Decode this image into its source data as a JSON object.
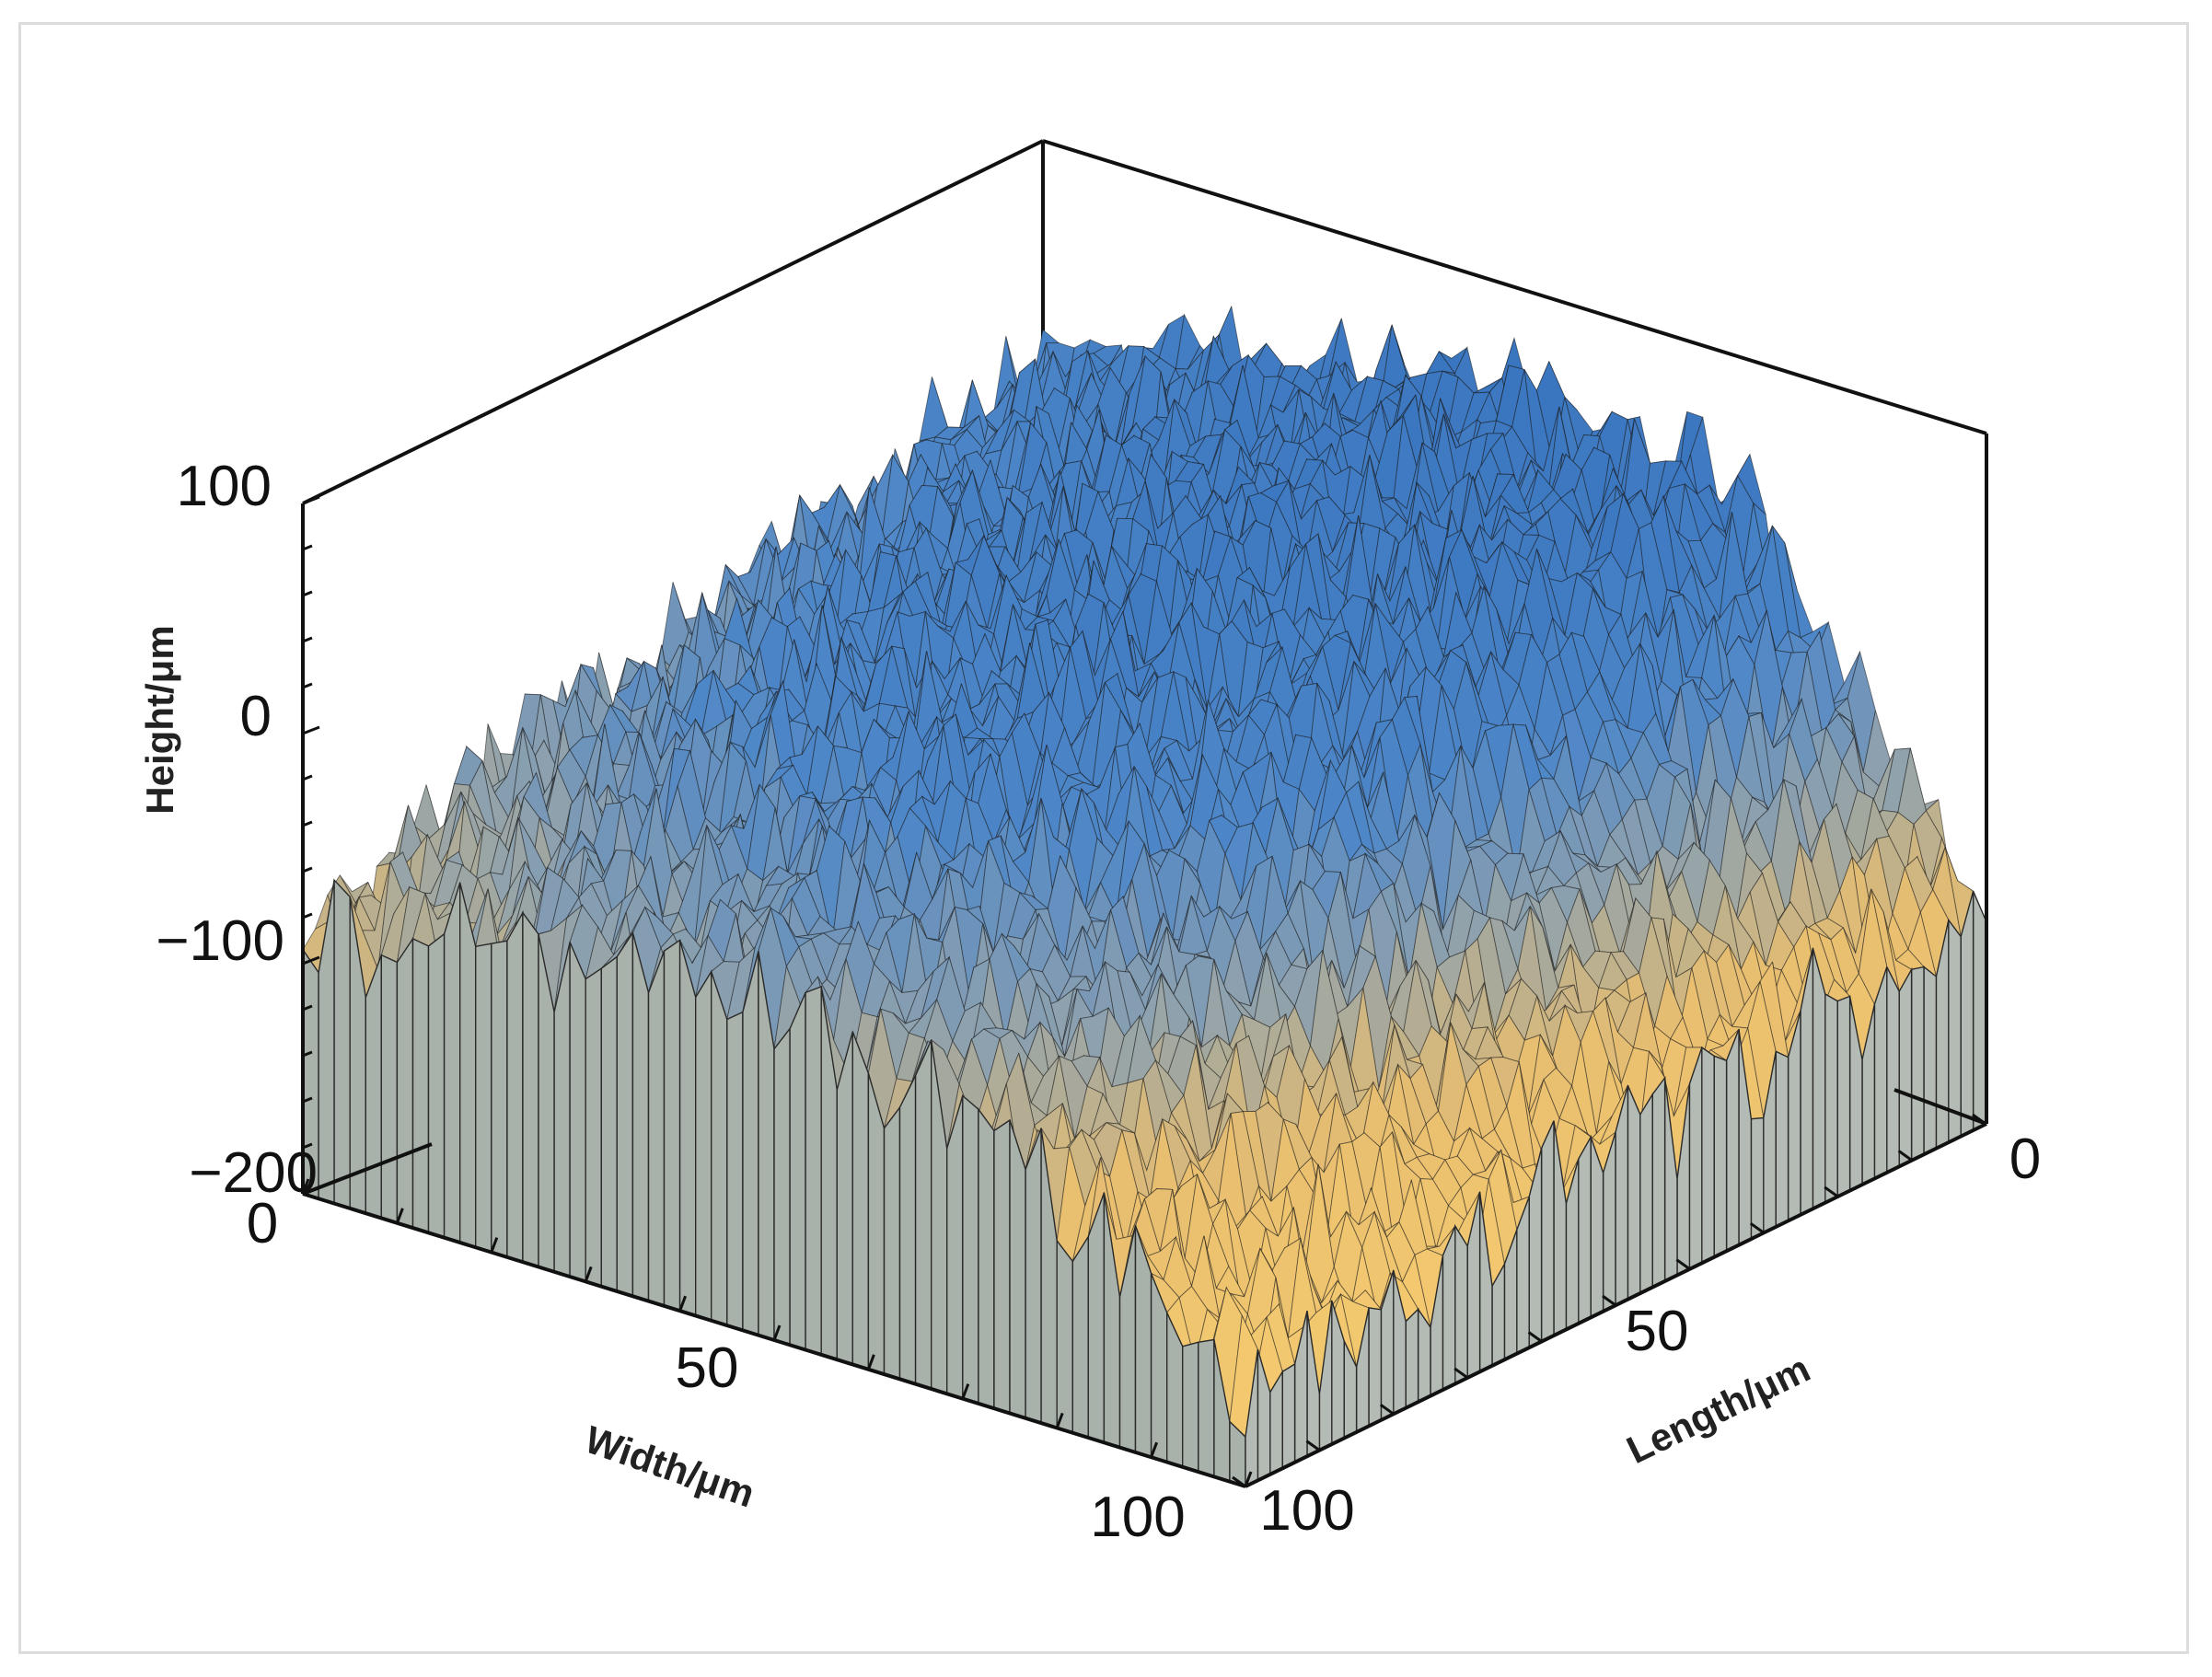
{
  "chart_data": {
    "type": "surface",
    "title": "",
    "xlabel": "Width/μm",
    "ylabel": "Length/μm",
    "zlabel": "Height/μm",
    "x_ticks": [
      "0",
      "50",
      "100"
    ],
    "y_ticks": [
      "0",
      "50",
      "100"
    ],
    "z_ticks": [
      "100",
      "0",
      "−100",
      "−200"
    ],
    "xlim": [
      0,
      100
    ],
    "ylim": [
      0,
      100
    ],
    "zlim": [
      -200,
      100
    ],
    "grid": false,
    "colormap": {
      "low": "#f5c76b",
      "mid": "#8a9cab",
      "high": "#3d7dc6"
    },
    "side_wall_color": "#a9b3ab",
    "surface_height_profile": {
      "x_samples": [
        0,
        25,
        50,
        75,
        100
      ],
      "y_samples": [
        0,
        25,
        50,
        75,
        100
      ],
      "z_grid_approx": [
        [
          5,
          35,
          55,
          40,
          -110
        ],
        [
          -20,
          20,
          40,
          30,
          -120
        ],
        [
          -40,
          10,
          25,
          0,
          -130
        ],
        [
          -60,
          -20,
          0,
          -40,
          -150
        ],
        [
          -90,
          -60,
          -50,
          -80,
          -160
        ]
      ]
    }
  }
}
